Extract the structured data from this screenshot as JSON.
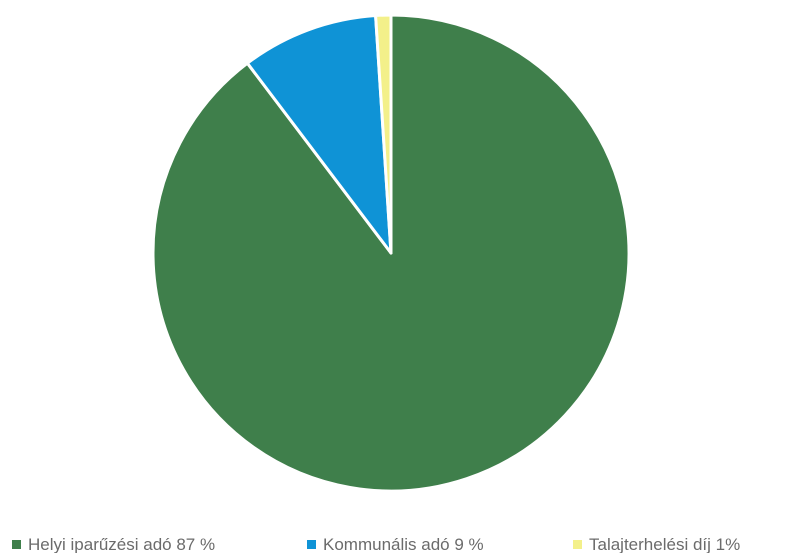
{
  "chart_data": {
    "type": "pie",
    "slices": [
      {
        "label": "Helyi iparűzési adó 87 %",
        "value": 87,
        "color": "#3f7f4b"
      },
      {
        "label": "Kommunális adó 9 %",
        "value": 9,
        "color": "#0f93d6"
      },
      {
        "label": "Talajterhelési díj 1%",
        "value": 1,
        "color": "#f3f08a"
      }
    ],
    "start": "12 o'clock",
    "direction": "clockwise",
    "legend": "bottom"
  }
}
